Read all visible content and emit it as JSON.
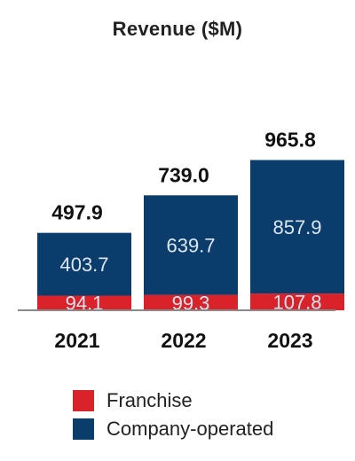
{
  "chart_data": {
    "type": "bar",
    "stacked": true,
    "title": "Revenue ($M)",
    "xlabel": "",
    "ylabel": "",
    "categories": [
      "2021",
      "2022",
      "2023"
    ],
    "series": [
      {
        "name": "Franchise",
        "color": "#d9222a",
        "values": [
          94.1,
          99.3,
          107.8
        ]
      },
      {
        "name": "Company-operated",
        "color": "#0a3d6b",
        "values": [
          403.7,
          639.7,
          857.9
        ]
      }
    ],
    "totals": [
      "497.9",
      "739.0",
      "965.8"
    ],
    "value_labels": [
      [
        "94.1",
        "99.3",
        "107.8"
      ],
      [
        "403.7",
        "639.7",
        "857.9"
      ]
    ],
    "legend_position": "bottom",
    "grid": false
  }
}
